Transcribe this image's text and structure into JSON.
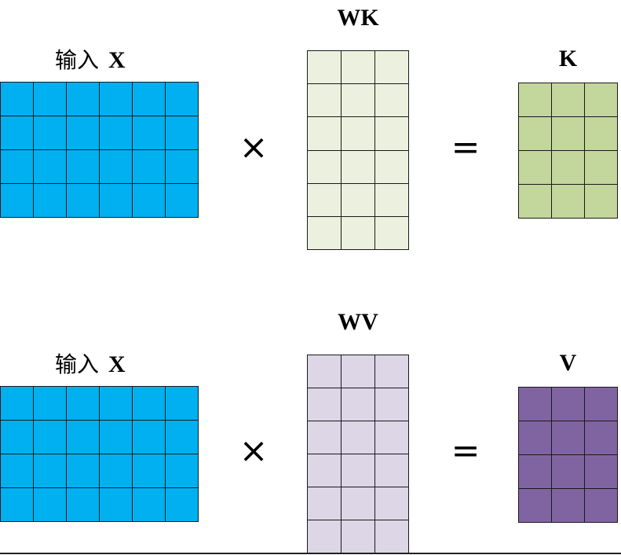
{
  "top_row": {
    "input_label_cjk": "输入",
    "input_label_var": "X",
    "weight_label": "WK",
    "result_label": "K",
    "multiply_sign": "×",
    "equals_sign": "=",
    "input_matrix": {
      "rows": 4,
      "cols": 6,
      "color": "#00b0f0"
    },
    "weight_matrix": {
      "rows": 6,
      "cols": 3,
      "color": "#ebf1de"
    },
    "result_matrix": {
      "rows": 4,
      "cols": 3,
      "color": "#c3d69b"
    }
  },
  "bottom_row": {
    "input_label_cjk": "输入",
    "input_label_var": "X",
    "weight_label": "WV",
    "result_label": "V",
    "multiply_sign": "×",
    "equals_sign": "=",
    "input_matrix": {
      "rows": 4,
      "cols": 6,
      "color": "#00b0f0"
    },
    "weight_matrix": {
      "rows": 6,
      "cols": 3,
      "color": "#dcd6e6"
    },
    "result_matrix": {
      "rows": 4,
      "cols": 3,
      "color": "#8064a2"
    }
  }
}
